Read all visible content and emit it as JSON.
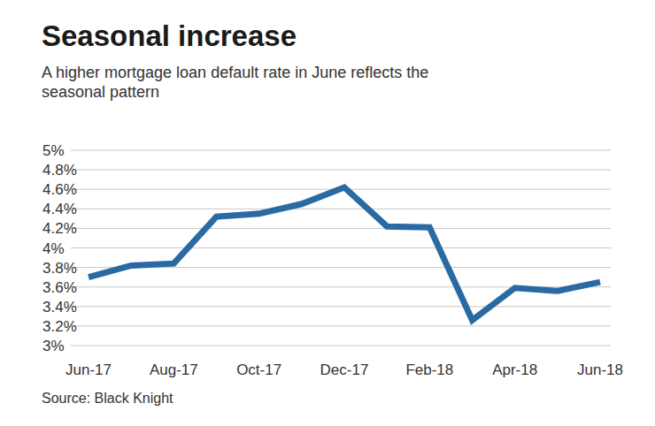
{
  "chart_data": {
    "type": "line",
    "title": "Seasonal increase",
    "subtitle": "A higher mortgage loan default rate in June reflects the seasonal pattern",
    "source": "Source: Black Knight",
    "categories": [
      "Jun-17",
      null,
      "Aug-17",
      null,
      "Oct-17",
      null,
      "Dec-17",
      null,
      "Feb-18",
      null,
      "Apr-18",
      null,
      "Jun-18"
    ],
    "values": [
      3.7,
      3.82,
      3.84,
      4.32,
      4.35,
      4.45,
      4.62,
      4.22,
      4.21,
      3.26,
      3.59,
      3.56,
      3.65
    ],
    "color": "#2a6aa3",
    "ylim": [
      3,
      5
    ],
    "yticks": [
      {
        "value": 3,
        "label": "3%"
      },
      {
        "value": 3.2,
        "label": "3.2%"
      },
      {
        "value": 3.4,
        "label": "3.4%"
      },
      {
        "value": 3.6,
        "label": "3.6%"
      },
      {
        "value": 3.8,
        "label": "3.8%"
      },
      {
        "value": 4,
        "label": "4%"
      },
      {
        "value": 4.2,
        "label": "4.2%"
      },
      {
        "value": 4.4,
        "label": "4.4%"
      },
      {
        "value": 4.6,
        "label": "4.6%"
      },
      {
        "value": 4.8,
        "label": "4.8%"
      },
      {
        "value": 5,
        "label": "5%"
      }
    ],
    "grid": true
  }
}
